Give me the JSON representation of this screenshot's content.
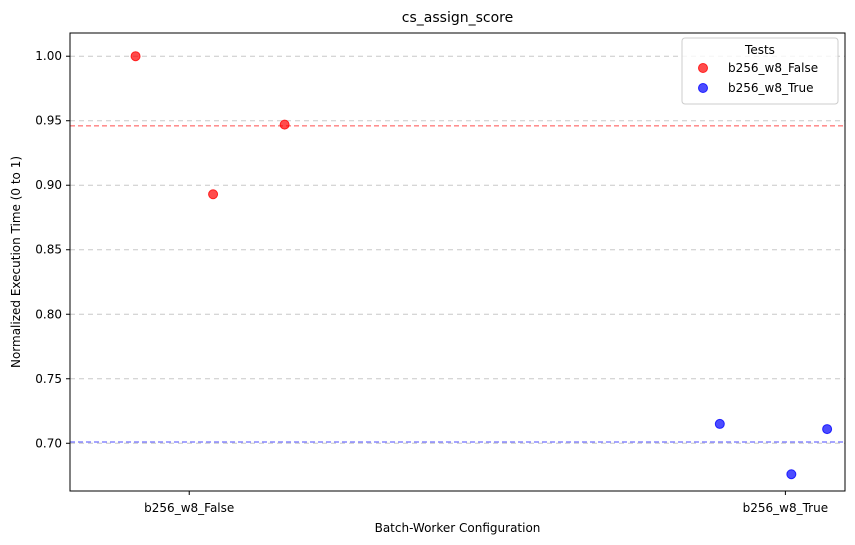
{
  "chart_data": {
    "type": "scatter",
    "title": "cs_assign_score",
    "xlabel": "Batch-Worker Configuration",
    "ylabel": "Normalized Execution Time (0 to 1)",
    "categories": [
      "b256_w8_False",
      "b256_w8_True"
    ],
    "ylim": [
      0.663,
      1.018
    ],
    "yticks": [
      "0.70",
      "0.75",
      "0.80",
      "0.85",
      "0.90",
      "0.95",
      "1.00"
    ],
    "grid": "y-dashed",
    "legend": {
      "title": "Tests",
      "placement": "top-right"
    },
    "series": [
      {
        "name": "b256_w8_False",
        "color": "#ff0000",
        "points": [
          {
            "category": 0,
            "jitter": -0.09,
            "y": 1.0
          },
          {
            "category": 0,
            "jitter": 0.04,
            "y": 0.893
          },
          {
            "category": 0,
            "jitter": 0.16,
            "y": 0.947
          }
        ],
        "mean": 0.946
      },
      {
        "name": "b256_w8_True",
        "color": "#0000ff",
        "points": [
          {
            "category": 1,
            "jitter": -0.11,
            "y": 0.715
          },
          {
            "category": 1,
            "jitter": 0.01,
            "y": 0.676
          },
          {
            "category": 1,
            "jitter": 0.07,
            "y": 0.711
          }
        ],
        "mean": 0.701
      }
    ]
  }
}
